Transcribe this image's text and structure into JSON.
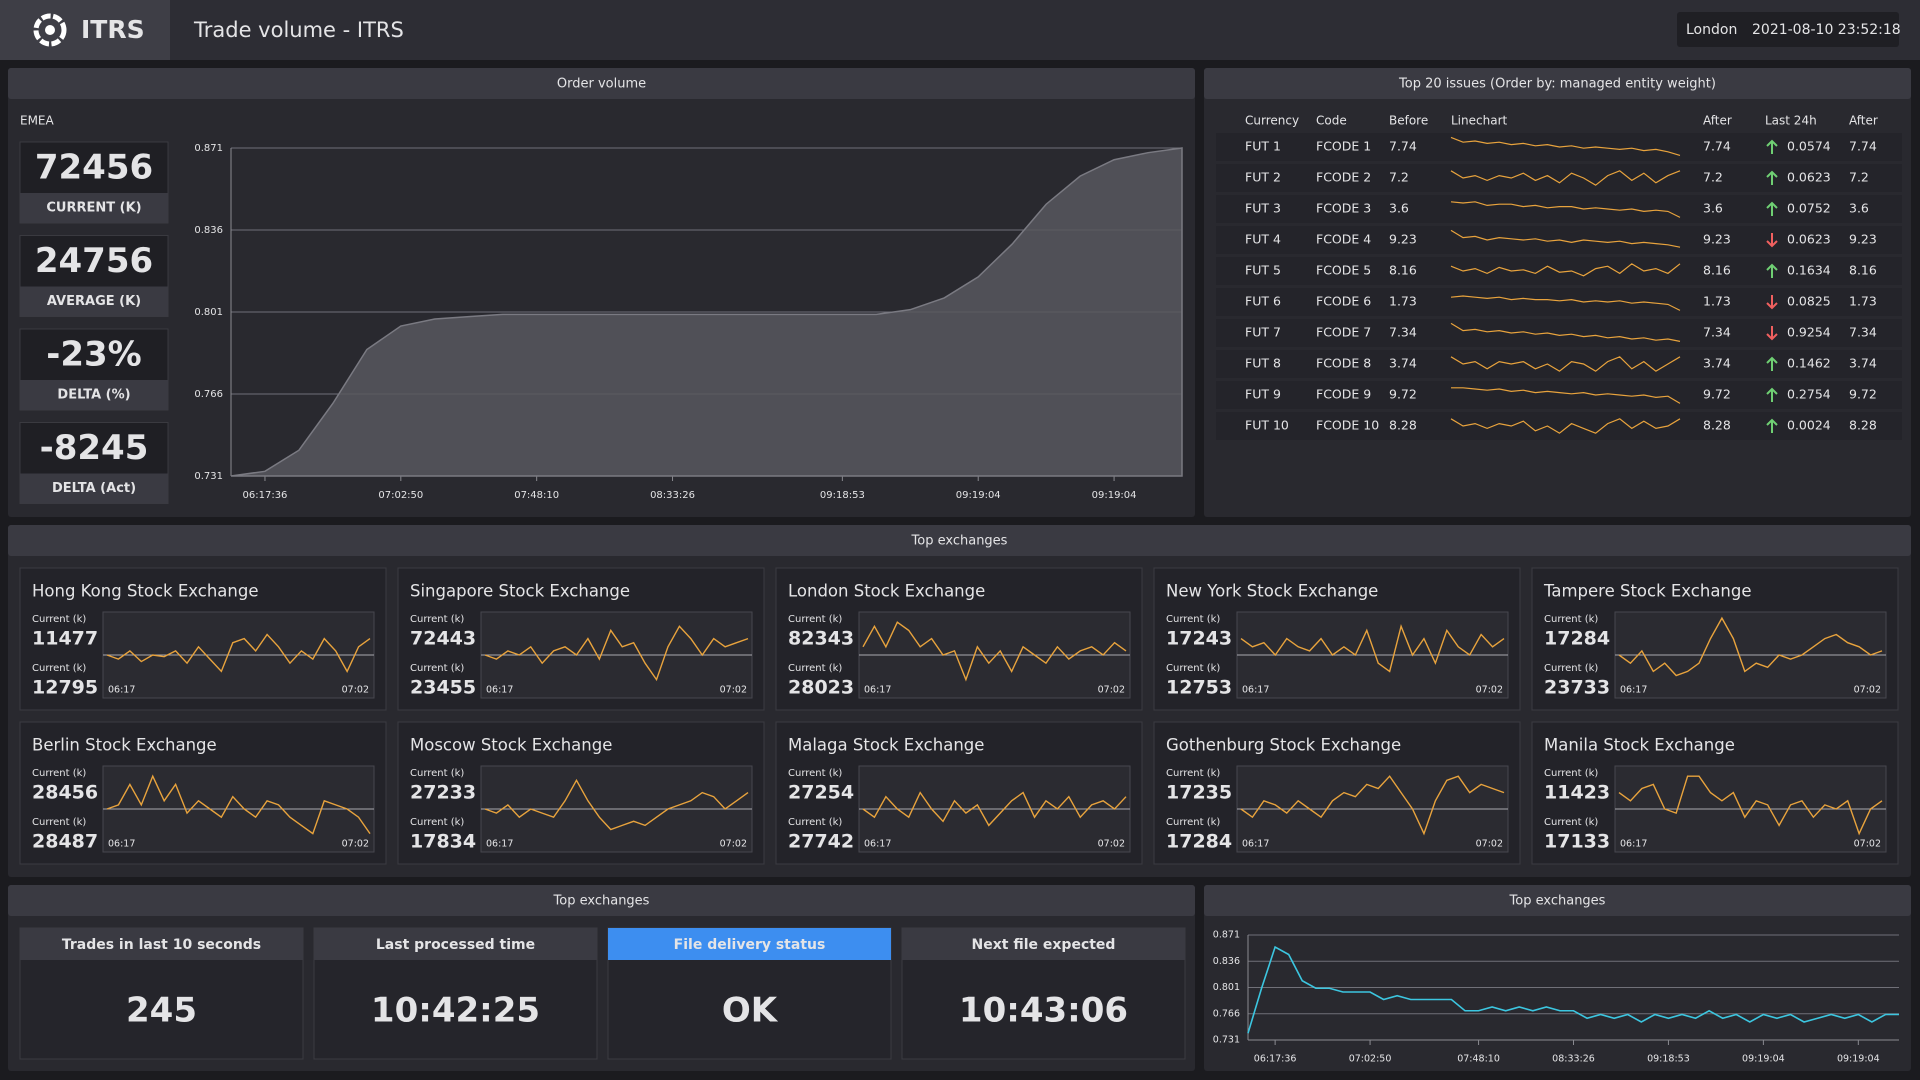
{
  "header": {
    "brand": "ITRS",
    "title": "Trade volume - ITRS",
    "location": "London",
    "datetime": "2021-08-10 23:52:18"
  },
  "order_volume": {
    "region": "EMEA",
    "kpis": [
      {
        "value": 72456,
        "label": "CURRENT (K)",
        "color": "#f5a94e"
      },
      {
        "value": 24756,
        "label": "AVERAGE (K)",
        "color": "#9b9b9f"
      },
      {
        "value": -23,
        "value_label": "-23%",
        "label": "DELTA (%)",
        "color": "#72d277"
      },
      {
        "value": -8245,
        "label": "DELTA (Act)",
        "color": "#72d277"
      }
    ]
  },
  "chart_data": [
    {
      "type": "area",
      "title": "Order volume",
      "color": "#57575e",
      "grid": true,
      "categories": [
        null,
        "06:17:36",
        null,
        null,
        null,
        "07:02:50",
        null,
        null,
        null,
        "07:48:10",
        null,
        null,
        null,
        "08:33:26",
        null,
        null,
        null,
        null,
        "09:18:53",
        null,
        null,
        null,
        "09:19:04",
        null,
        null,
        null,
        "09:19:04",
        null,
        null
      ],
      "values": [
        0.731,
        0.733,
        0.742,
        0.762,
        0.785,
        0.795,
        0.798,
        0.799,
        0.8,
        0.8,
        0.8,
        0.8,
        0.8,
        0.8,
        0.8,
        0.8,
        0.8,
        0.8,
        0.8,
        0.8,
        0.802,
        0.807,
        0.816,
        0.83,
        0.847,
        0.859,
        0.866,
        0.869,
        0.871
      ],
      "ylim": [
        0.731,
        0.871
      ],
      "yticks": [
        0.731,
        0.766,
        0.801,
        0.836,
        0.871
      ]
    },
    {
      "type": "line",
      "title": "Top exchanges",
      "color": "#3cc6e0",
      "grid": true,
      "categories": [
        null,
        null,
        "06:17:36",
        null,
        null,
        null,
        null,
        null,
        null,
        "07:02:50",
        null,
        null,
        null,
        null,
        null,
        null,
        null,
        "07:48:10",
        null,
        null,
        null,
        null,
        null,
        null,
        "08:33:26",
        null,
        null,
        null,
        null,
        null,
        null,
        "09:18:53",
        null,
        null,
        null,
        null,
        null,
        null,
        "09:19:04",
        null,
        null,
        null,
        null,
        null,
        null,
        "09:19:04",
        null,
        null,
        null
      ],
      "values": [
        0.74,
        0.8,
        0.855,
        0.845,
        0.81,
        0.8,
        0.8,
        0.795,
        0.795,
        0.795,
        0.785,
        0.79,
        0.785,
        0.785,
        0.785,
        0.785,
        0.77,
        0.77,
        0.775,
        0.77,
        0.775,
        0.77,
        0.775,
        0.77,
        0.77,
        0.76,
        0.765,
        0.76,
        0.765,
        0.755,
        0.765,
        0.76,
        0.765,
        0.76,
        0.77,
        0.76,
        0.765,
        0.755,
        0.765,
        0.76,
        0.765,
        0.755,
        0.76,
        0.765,
        0.76,
        0.765,
        0.755,
        0.765,
        0.765
      ],
      "ylim": [
        0.731,
        0.871
      ],
      "yticks": [
        0.731,
        0.766,
        0.801,
        0.836,
        0.871
      ]
    }
  ],
  "issues": {
    "title": "Top 20 issues (Order by: managed entity weight)",
    "columns": [
      "Currency",
      "Code",
      "Before",
      "Linechart",
      "After",
      "Last 24h",
      "After"
    ],
    "linechart_ylim": [
      0,
      10
    ],
    "rows": [
      {
        "currency": "FUT 1",
        "code": "FCODE 1",
        "before": 7.74,
        "after": 7.74,
        "last_24h": 0.0574,
        "trend": "up",
        "after_2": 7.74,
        "linechart": [
          9,
          7,
          7.5,
          6.5,
          7,
          6,
          6.5,
          5.5,
          6,
          5,
          5.5,
          4.5,
          5,
          4.5,
          4,
          4.5,
          3.5,
          4,
          3,
          1.5
        ]
      },
      {
        "currency": "FUT 2",
        "code": "FCODE 2",
        "before": 7.2,
        "after": 7.2,
        "last_24h": 0.0623,
        "trend": "up",
        "after_2": 7.2,
        "linechart": [
          8,
          5,
          6,
          4,
          6,
          5,
          7,
          4,
          6,
          3,
          7,
          5,
          2,
          6,
          8,
          4,
          7,
          3,
          6,
          8
        ]
      },
      {
        "currency": "FUT 3",
        "code": "FCODE 3",
        "before": 3.6,
        "after": 3.6,
        "last_24h": 0.0752,
        "trend": "up",
        "after_2": 3.6,
        "linechart": [
          8,
          7.5,
          8,
          6.5,
          7,
          7,
          6,
          6.5,
          5.5,
          6,
          6,
          5,
          5.5,
          5,
          4.5,
          5,
          4,
          4.5,
          4,
          1.5
        ]
      },
      {
        "currency": "FUT 4",
        "code": "FCODE 4",
        "before": 9.23,
        "after": 9.23,
        "last_24h": 0.0623,
        "trend": "down",
        "after_2": 9.23,
        "linechart": [
          9,
          6,
          6.5,
          5,
          6,
          5.5,
          5,
          5.5,
          4.5,
          5,
          4,
          5,
          4.5,
          4,
          4.5,
          3.5,
          4,
          3.5,
          3,
          2
        ]
      },
      {
        "currency": "FUT 5",
        "code": "FCODE 5",
        "before": 8.16,
        "after": 8.16,
        "last_24h": 0.1634,
        "trend": "up",
        "after_2": 8.16,
        "linechart": [
          7,
          5,
          6,
          4,
          6.5,
          5,
          5.5,
          4,
          7,
          4.5,
          5,
          3,
          6,
          7,
          4,
          8,
          5,
          6,
          4,
          8
        ]
      },
      {
        "currency": "FUT 6",
        "code": "FCODE 6",
        "before": 1.73,
        "after": 1.73,
        "last_24h": 0.0825,
        "trend": "down",
        "after_2": 1.73,
        "linechart": [
          7,
          7.5,
          7,
          6.5,
          7,
          6,
          6.5,
          6,
          6,
          5.5,
          6,
          5,
          5.5,
          5,
          5.5,
          4.5,
          5,
          4.5,
          4,
          1.5
        ]
      },
      {
        "currency": "FUT 7",
        "code": "FCODE 7",
        "before": 7.34,
        "after": 7.34,
        "last_24h": 0.9254,
        "trend": "down",
        "after_2": 7.34,
        "linechart": [
          9,
          6,
          6.5,
          5.5,
          6,
          5,
          5.5,
          4.5,
          5,
          4,
          4.5,
          3.5,
          4,
          3,
          3.5,
          2.5,
          3,
          2,
          2.5,
          1.5
        ]
      },
      {
        "currency": "FUT 8",
        "code": "FCODE 8",
        "before": 3.74,
        "after": 3.74,
        "last_24h": 0.1462,
        "trend": "up",
        "after_2": 3.74,
        "linechart": [
          8,
          5,
          6,
          3,
          6,
          5,
          6,
          3,
          5,
          2,
          6,
          5,
          2,
          6,
          8,
          3,
          6,
          2,
          5,
          8
        ]
      },
      {
        "currency": "FUT 9",
        "code": "FCODE 9",
        "before": 9.72,
        "after": 9.72,
        "last_24h": 0.2754,
        "trend": "up",
        "after_2": 9.72,
        "linechart": [
          8,
          8,
          7.5,
          7,
          7.5,
          6.5,
          7,
          6,
          6.5,
          6,
          5.5,
          6,
          5,
          5.5,
          5,
          4.5,
          5,
          4,
          4.5,
          1.5
        ]
      },
      {
        "currency": "FUT 10",
        "code": "FCODE 10",
        "before": 8.28,
        "after": 8.28,
        "last_24h": 0.0024,
        "trend": "up",
        "after_2": 8.28,
        "linechart": [
          8,
          5,
          6,
          4,
          6,
          5,
          7,
          3,
          5,
          2,
          6,
          4,
          2,
          6,
          8,
          4,
          7,
          4,
          5,
          8
        ]
      }
    ]
  },
  "exchanges": {
    "title": "Top exchanges",
    "current_label": "Current (k)",
    "x_start": "06:17",
    "x_end": "07:02",
    "ylim": [
      0,
      10
    ],
    "baseline": 5,
    "items": [
      {
        "name": "Hong Kong Stock Exchange",
        "current": 11477,
        "previous": 12795,
        "values": [
          5,
          4.5,
          5.5,
          4.2,
          5,
          4.8,
          5.5,
          4,
          6,
          4.5,
          3,
          6.5,
          7,
          5.5,
          7.5,
          6,
          4,
          5.5,
          4.5,
          7,
          5.5,
          3,
          6,
          7
        ]
      },
      {
        "name": "Singapore Stock Exchange",
        "current": 72443,
        "previous": 23455,
        "values": [
          5,
          4.5,
          5.5,
          5,
          6,
          4,
          5.5,
          6,
          5,
          7,
          4.5,
          8,
          6,
          6.5,
          4,
          2,
          6,
          8.5,
          7,
          5,
          7,
          6,
          6.5,
          7
        ]
      },
      {
        "name": "London Stock Exchange",
        "current": 82343,
        "previous": 28023,
        "values": [
          6,
          8.5,
          6,
          9,
          8,
          6,
          7,
          5,
          5.5,
          2,
          6,
          4,
          5.5,
          3,
          6,
          5,
          4,
          6,
          4.5,
          5.5,
          6,
          5,
          6.5,
          5.5
        ]
      },
      {
        "name": "New York Stock Exchange",
        "current": 17243,
        "previous": 12753,
        "values": [
          7,
          6,
          6.5,
          5,
          7,
          6,
          5.5,
          7,
          5,
          6,
          5,
          8,
          4,
          3,
          8.5,
          5,
          7,
          4,
          8,
          6,
          5,
          7.5,
          6,
          7
        ]
      },
      {
        "name": "Tampere Stock Exchange",
        "current": 17284,
        "previous": 23733,
        "values": [
          5,
          4,
          5.5,
          3,
          4,
          2.5,
          3,
          4,
          7,
          9.5,
          7,
          3,
          4,
          3.5,
          5,
          4.5,
          5,
          6,
          7,
          7.5,
          6.5,
          6,
          5,
          5.5
        ]
      },
      {
        "name": "Berlin Stock Exchange",
        "current": 28456,
        "previous": 28487,
        "values": [
          5,
          5.5,
          8,
          5.5,
          9,
          6,
          8,
          4.5,
          6,
          5,
          4,
          6.5,
          5,
          4,
          6,
          5.5,
          4,
          3,
          2,
          6,
          5.5,
          5,
          4,
          2
        ]
      },
      {
        "name": "Moscow Stock Exchange",
        "current": 27233,
        "previous": 17834,
        "values": [
          5,
          4.5,
          5.5,
          4,
          5,
          4.5,
          4,
          6,
          8.5,
          6,
          4,
          2.5,
          3,
          3.5,
          3,
          4,
          5,
          5.5,
          6,
          7,
          6.5,
          5,
          6,
          7
        ]
      },
      {
        "name": "Malaga Stock Exchange",
        "current": 27254,
        "previous": 27742,
        "values": [
          5,
          4,
          6.5,
          5,
          4,
          7,
          5,
          3.5,
          6,
          4.5,
          5.5,
          3,
          4.5,
          6,
          7,
          4,
          6,
          5,
          6.5,
          4,
          5.5,
          6,
          5,
          6.5
        ]
      },
      {
        "name": "Gothenburg Stock Exchange",
        "current": 17235,
        "previous": 17284,
        "values": [
          5,
          4,
          6,
          5.5,
          4.5,
          6,
          5,
          4,
          6,
          7,
          6.5,
          8,
          7.5,
          9,
          7,
          5,
          2,
          6,
          8.5,
          9,
          7,
          8,
          7.5,
          7
        ]
      },
      {
        "name": "Manila Stock Exchange",
        "current": 11423,
        "previous": 17133,
        "values": [
          7,
          6,
          7.5,
          8,
          5,
          4.5,
          9,
          9,
          7,
          6,
          7,
          4,
          6,
          5.5,
          3,
          5.5,
          6,
          4,
          5.5,
          5,
          6,
          2,
          5,
          6
        ]
      }
    ]
  },
  "status": {
    "title": "Top exchanges",
    "tiles": [
      {
        "title": "Trades in last 10 seconds",
        "value": 245
      },
      {
        "title": "Last processed time",
        "value": "10:42:25"
      },
      {
        "title": "File delivery status",
        "value": "OK",
        "highlight": true
      },
      {
        "title": "Next file expected",
        "value": "10:43:06"
      }
    ]
  }
}
